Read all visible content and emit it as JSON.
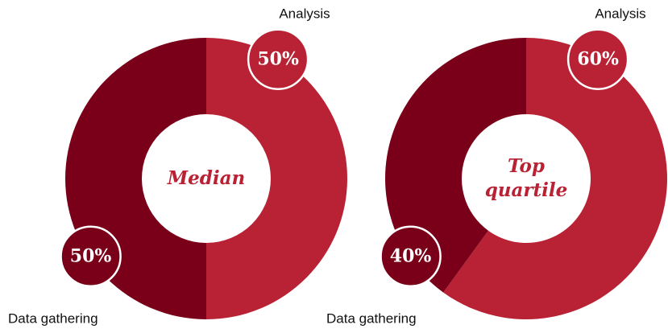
{
  "chart_data": [
    {
      "type": "donut",
      "center_label": "Median",
      "categories": [
        "Analysis",
        "Data gathering"
      ],
      "values": [
        50,
        50
      ],
      "value_labels": [
        "50%",
        "50%"
      ],
      "colors": [
        "#b82234",
        "#7a0019"
      ]
    },
    {
      "type": "donut",
      "center_label": "Top quartile",
      "categories": [
        "Analysis",
        "Data gathering"
      ],
      "values": [
        60,
        40
      ],
      "value_labels": [
        "60%",
        "40%"
      ],
      "colors": [
        "#b82234",
        "#7a0019"
      ]
    }
  ]
}
